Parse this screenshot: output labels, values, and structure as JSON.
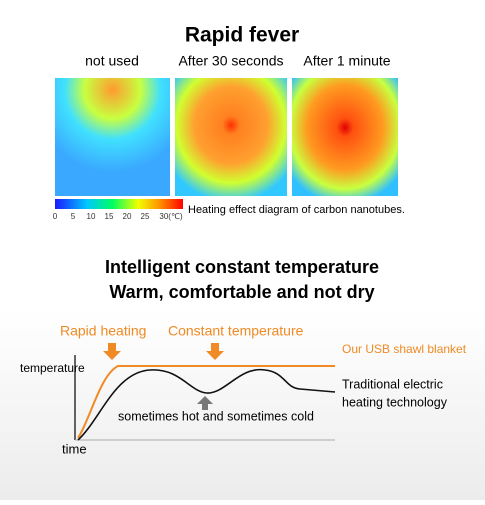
{
  "header": {
    "title": "Rapid fever"
  },
  "thermal_images": [
    {
      "caption": "not used"
    },
    {
      "caption": "After 30 seconds"
    },
    {
      "caption": "After 1 minute"
    }
  ],
  "scale": {
    "labels": [
      "0",
      "5",
      "10",
      "15",
      "20",
      "25",
      "30(℃)"
    ],
    "caption": "Heating effect diagram of carbon nanotubes."
  },
  "section": {
    "lines": [
      "Intelligent constant temperature",
      "Warm, comfortable and not dry"
    ]
  },
  "diagram": {
    "rapid_heating": "Rapid heating",
    "constant_temperature": "Constant temperature",
    "y_label": "temperature",
    "x_label": "time",
    "usb_label": "Our USB shawl blanket",
    "traditional_label": [
      "Traditional electric",
      "heating technology"
    ],
    "fluctuation_label": "sometimes hot and sometimes cold"
  }
}
